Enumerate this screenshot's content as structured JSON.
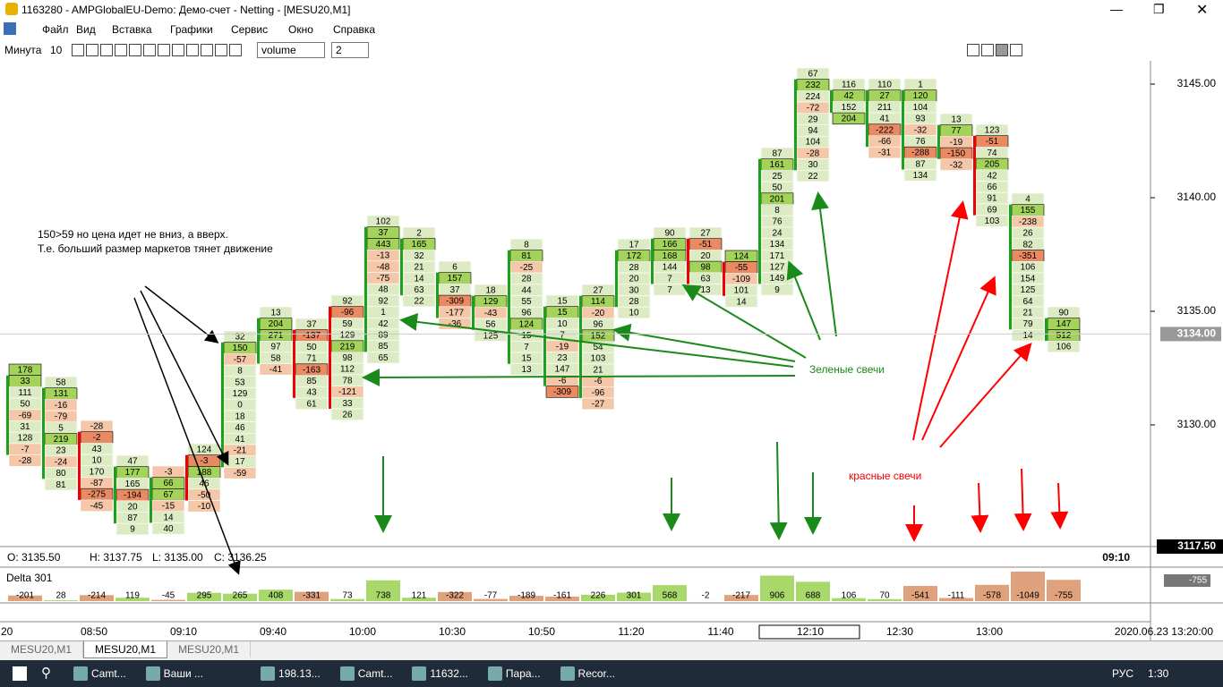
{
  "window": {
    "title": "1163280 - AMPGlobalEU-Demo: Демо-счет - Netting - [MESU20,M1]"
  },
  "menu": [
    "Файл",
    "Вид",
    "Вставка",
    "Графики",
    "Сервис",
    "Окно",
    "Справка"
  ],
  "toolbar": {
    "period": "Минута",
    "period_value": "10",
    "mode": "volume",
    "level": "2"
  },
  "annotations": {
    "note_line1": "150>59 но цена идет не вниз, а вверх.",
    "note_line2": "Т.е. больший размер маркетов тянет движение",
    "green": "Зеленые свечи",
    "red": "красные свечи"
  },
  "price_axis": {
    "ticks": [
      {
        "value": 3145,
        "label": "3145.00"
      },
      {
        "value": 3140,
        "label": "3140.00"
      },
      {
        "value": 3135,
        "label": "3135.00"
      },
      {
        "value": 3130,
        "label": "3130.00"
      }
    ],
    "current": {
      "value": 3134,
      "label": "3134.00"
    },
    "bottom": "3117.50"
  },
  "ohlc": {
    "open": "O: 3135.50",
    "high": "H: 3137.75",
    "low": "L: 3135.00",
    "close": "C: 3136.25",
    "time": "09:10"
  },
  "candles": [
    {
      "cells": [
        178,
        33,
        111,
        50,
        -69,
        31,
        128,
        -7,
        -28
      ]
    },
    {
      "cells": [
        58,
        131,
        -16,
        -79,
        5,
        219,
        23,
        -24,
        80,
        81
      ]
    },
    {
      "cells": [
        -28,
        -2,
        43,
        10,
        170,
        -87,
        -275,
        -45
      ]
    },
    {
      "cells": [
        47,
        177,
        165,
        -194,
        20,
        87,
        9
      ]
    },
    {
      "cells": [
        -3,
        66,
        67,
        -15,
        14,
        40
      ]
    },
    {
      "cells": [
        124,
        -3,
        188,
        46,
        -50,
        -10
      ]
    },
    {
      "cells": [
        32,
        150,
        -57,
        8,
        53,
        129,
        0,
        18,
        46,
        41,
        -21,
        17,
        -59
      ]
    },
    {
      "cells": [
        13,
        204,
        271,
        97,
        58,
        -41
      ]
    },
    {
      "cells": [
        37,
        -137,
        50,
        71,
        -163,
        85,
        43,
        61
      ]
    },
    {
      "cells": [
        92,
        -96,
        59,
        129,
        219,
        98,
        112,
        78,
        -121,
        33,
        26
      ]
    },
    {
      "cells": [
        102,
        37,
        443,
        -13,
        -48,
        -75,
        48,
        92,
        1,
        42,
        89,
        85,
        65
      ]
    },
    {
      "cells": [
        2,
        165,
        32,
        21,
        14,
        63,
        22
      ]
    },
    {
      "cells": [
        6,
        157,
        37,
        -309,
        -177,
        -36
      ]
    },
    {
      "cells": [
        18,
        129,
        -43,
        56,
        125
      ]
    },
    {
      "cells": [
        8,
        81,
        -25,
        28,
        44,
        55,
        96,
        124,
        15,
        7,
        15,
        13
      ]
    },
    {
      "cells": [
        15,
        15,
        10,
        7,
        -19,
        23,
        147,
        -6,
        -309
      ]
    },
    {
      "cells": [
        27,
        114,
        -20,
        96,
        152,
        54,
        103,
        21,
        -6,
        -96,
        -27
      ]
    },
    {
      "cells": [
        17,
        172,
        28,
        20,
        30,
        28,
        10
      ]
    },
    {
      "cells": [
        90,
        166,
        168,
        144,
        7,
        7
      ]
    },
    {
      "cells": [
        27,
        -51,
        20,
        98,
        63,
        13
      ]
    },
    {
      "cells": [
        124,
        -55,
        -109,
        101,
        14
      ]
    },
    {
      "cells": [
        87,
        161,
        25,
        50,
        201,
        8,
        76,
        24,
        134,
        171,
        127,
        149,
        9
      ]
    },
    {
      "cells": [
        67,
        232,
        224,
        -72,
        29,
        94,
        104,
        -28,
        30,
        22
      ]
    },
    {
      "cells": [
        116,
        42,
        152,
        204
      ]
    },
    {
      "cells": [
        110,
        27,
        211,
        41,
        -222,
        -66,
        -31
      ]
    },
    {
      "cells": [
        1,
        120,
        104,
        93,
        -32,
        76,
        -288,
        87,
        134
      ]
    },
    {
      "cells": [
        13,
        77,
        -19,
        -150,
        -32
      ]
    },
    {
      "cells": [
        123,
        -51,
        74,
        205,
        42,
        66,
        91,
        69,
        103
      ]
    },
    {
      "cells": [
        4,
        155,
        -238,
        26,
        82,
        -351,
        106,
        154,
        125,
        64,
        21,
        79,
        14
      ]
    },
    {
      "cells": [
        90,
        147,
        512,
        106
      ]
    }
  ],
  "delta": {
    "title": "Delta 301",
    "axis_label": "-755",
    "values": [
      -201,
      28,
      -214,
      119,
      -45,
      295,
      265,
      408,
      -331,
      73,
      738,
      121,
      -322,
      -77,
      -189,
      -161,
      226,
      301,
      568,
      -2,
      -217,
      906,
      688,
      106,
      70,
      -541,
      -111,
      -578,
      -1049,
      -755
    ]
  },
  "time_axis": {
    "labels": [
      ":20",
      "08:50",
      "09:10",
      "09:40",
      "10:00",
      "10:30",
      "10:50",
      "11:20",
      "11:40",
      "12:10",
      "12:30",
      "13:00"
    ],
    "end": "2020.06.23 13:20:00"
  },
  "tabs": [
    "MESU20,M1",
    "MESU20,M1",
    "MESU20,M1"
  ],
  "taskbar": {
    "apps": [
      "Camt...",
      "Ваши ...",
      "198.13...",
      "Camt...",
      "11632...",
      "Пара...",
      "Recor..."
    ],
    "lang": "РУС",
    "clock": "1:30"
  }
}
